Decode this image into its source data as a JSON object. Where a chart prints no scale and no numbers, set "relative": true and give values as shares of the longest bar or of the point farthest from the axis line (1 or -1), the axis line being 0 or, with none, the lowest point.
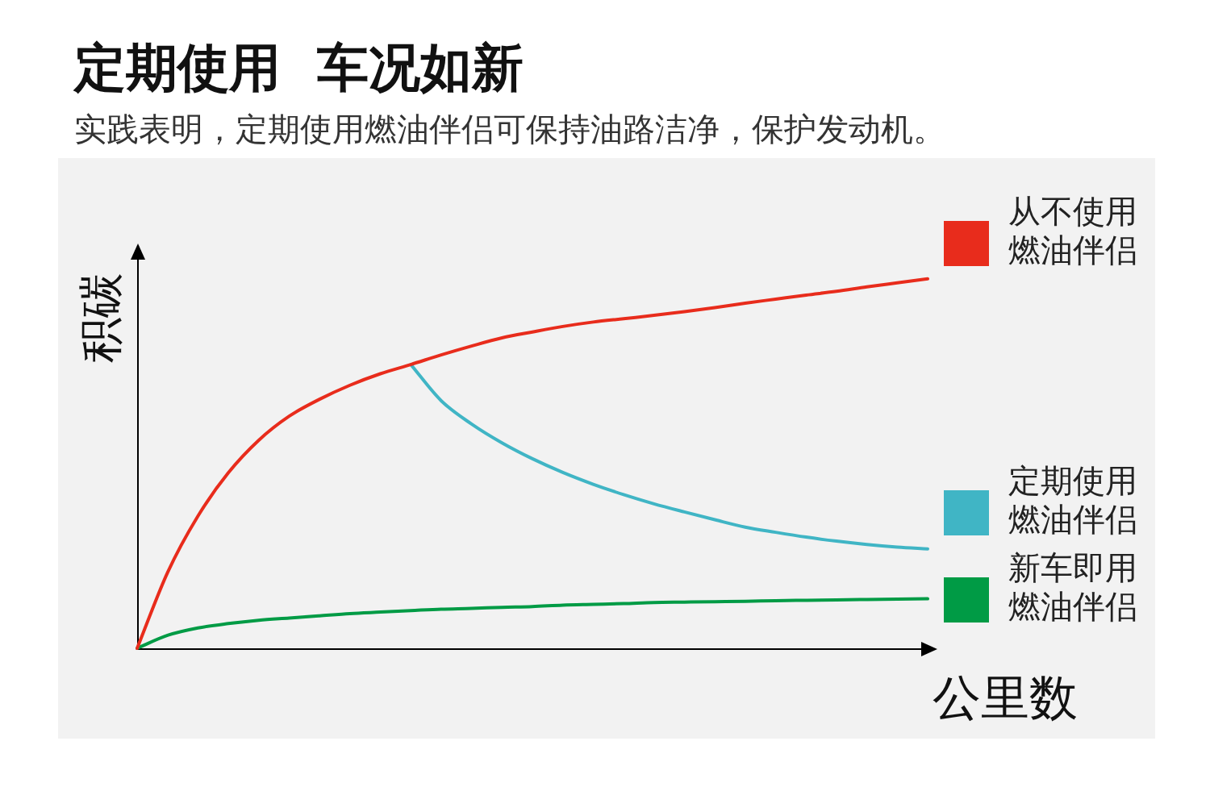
{
  "chart_data": {
    "type": "line",
    "title": "定期使用  车况如新",
    "subtitle": "实践表明，定期使用燃油伴侣可保持油路洁净，保护发动机。",
    "xlabel": "公里数",
    "ylabel": "积碳",
    "categories": [
      null,
      null,
      null,
      null,
      null,
      null,
      null,
      null,
      null,
      null,
      null,
      null,
      null,
      null,
      null,
      null,
      null,
      null,
      null,
      null,
      null,
      null,
      null,
      null,
      null,
      null,
      null
    ],
    "relative": true,
    "series": [
      {
        "name": "从不使用燃油伴侣",
        "color": "#e82c1c",
        "values": [
          0,
          0.205,
          0.358,
          0.475,
          0.563,
          0.628,
          0.674,
          0.712,
          0.743,
          0.768,
          0.794,
          0.818,
          0.84,
          0.856,
          0.871,
          0.883,
          0.892,
          0.901,
          0.911,
          0.922,
          0.934,
          0.945,
          0.956,
          0.966,
          0.978,
          0.989,
          1
        ]
      },
      {
        "name": "定期使用燃油伴侣",
        "color": "#40b5c5",
        "values": [
          null,
          null,
          null,
          null,
          null,
          null,
          null,
          null,
          null,
          0.768,
          0.67,
          0.607,
          0.556,
          0.513,
          0.476,
          0.444,
          0.416,
          0.391,
          0.369,
          0.348,
          0.328,
          0.314,
          0.301,
          0.29,
          0.281,
          0.274,
          0.269
        ]
      },
      {
        "name": "新车即用燃油伴侣",
        "color": "#009b45",
        "values": [
          0,
          0.035,
          0.055,
          0.067,
          0.076,
          0.082,
          0.088,
          0.094,
          0.098,
          0.102,
          0.106,
          0.108,
          0.111,
          0.113,
          0.117,
          0.119,
          0.121,
          0.124,
          0.125,
          0.126,
          0.127,
          0.129,
          0.13,
          0.131,
          0.132,
          0.133,
          0.134
        ]
      }
    ],
    "legend": "right",
    "marker": "none",
    "grid": false
  }
}
